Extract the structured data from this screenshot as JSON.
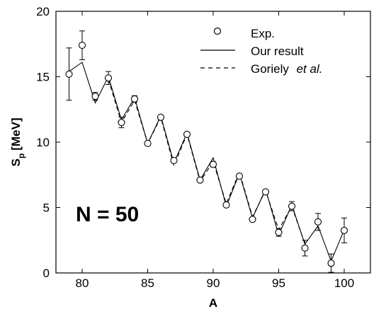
{
  "chart_data": {
    "type": "line",
    "title": "",
    "xlabel": "A",
    "ylabel_main": "S",
    "ylabel_sub": "p",
    "ylabel_unit": "[MeV]",
    "xlim": [
      78,
      102
    ],
    "ylim": [
      0,
      20
    ],
    "xticks": [
      80,
      85,
      90,
      95,
      100
    ],
    "yticks": [
      0,
      5,
      10,
      15,
      20
    ],
    "grid": false,
    "legend_position": "top-right",
    "annotation": "N = 50",
    "legend": {
      "exp": "Exp.",
      "ours": "Our result",
      "goriely_name": "Goriely",
      "goriely_suffix": "et al."
    },
    "series": [
      {
        "name": "Exp.",
        "style": "markers-errorbars",
        "x": [
          79,
          80,
          81,
          82,
          83,
          84,
          85,
          86,
          87,
          88,
          89,
          90,
          91,
          92,
          93,
          94,
          95,
          96,
          97,
          98,
          99,
          100
        ],
        "y": [
          15.2,
          17.4,
          13.5,
          14.9,
          11.5,
          13.3,
          9.9,
          11.9,
          8.6,
          10.6,
          7.1,
          8.3,
          5.2,
          7.4,
          4.1,
          6.2,
          3.1,
          5.1,
          1.9,
          3.9,
          0.75,
          3.25
        ],
        "err": [
          2.0,
          1.1,
          0.3,
          0.5,
          0.4,
          0.25,
          0.15,
          0.15,
          0.15,
          0.15,
          0.15,
          0.2,
          0.15,
          0.15,
          0.15,
          0.15,
          0.3,
          0.35,
          0.6,
          0.65,
          0.7,
          0.95
        ]
      },
      {
        "name": "Our result",
        "style": "solid",
        "x": [
          79,
          80,
          81,
          82,
          83,
          84,
          85,
          86,
          87,
          88,
          89,
          90,
          91,
          92,
          93,
          94,
          95,
          96,
          97,
          98,
          99,
          100
        ],
        "y": [
          15.4,
          16.1,
          13.0,
          15.0,
          11.7,
          13.4,
          9.9,
          12.0,
          8.4,
          10.7,
          7.1,
          8.8,
          5.1,
          7.6,
          4.2,
          6.4,
          2.9,
          5.2,
          2.2,
          3.6,
          0.9,
          3.3
        ]
      },
      {
        "name": "Goriely et al.",
        "style": "dashed",
        "x": [
          82,
          83,
          84,
          85,
          86,
          87,
          88,
          89,
          90,
          91,
          92,
          93,
          94,
          95,
          96,
          97
        ],
        "y": [
          14.8,
          11.5,
          13.2,
          9.9,
          11.9,
          8.2,
          10.6,
          7.0,
          8.5,
          5.3,
          7.7,
          4.3,
          6.3,
          3.3,
          5.1,
          2.2
        ]
      }
    ]
  }
}
